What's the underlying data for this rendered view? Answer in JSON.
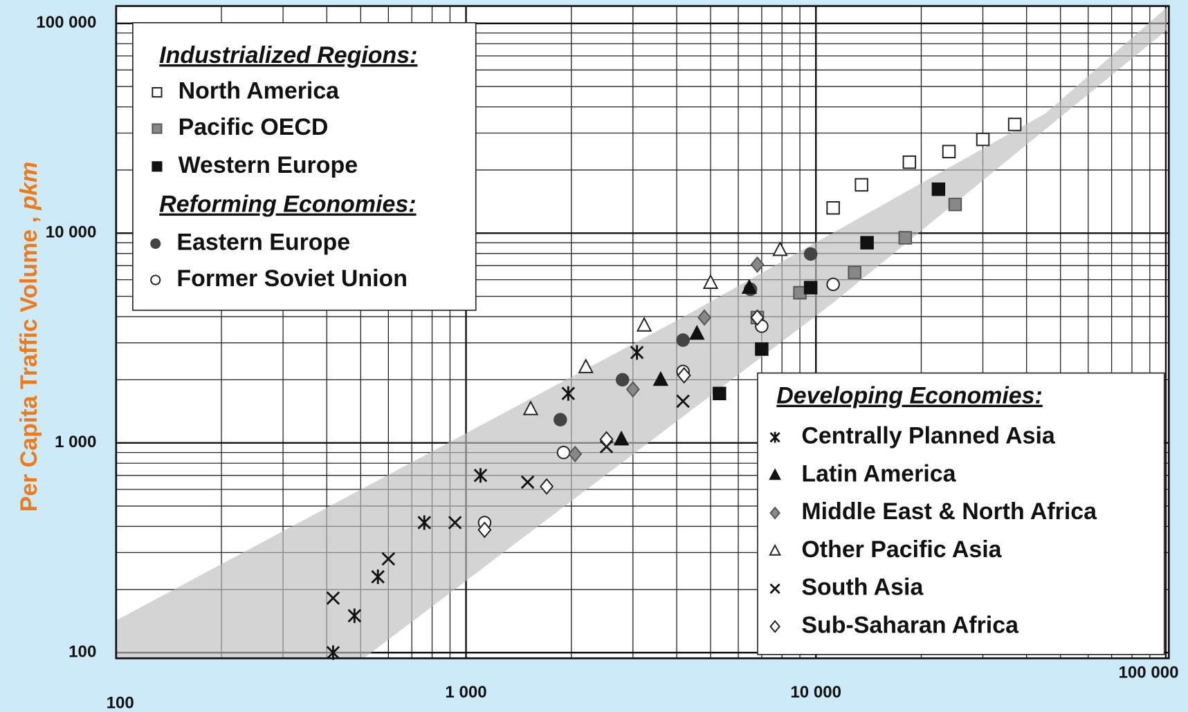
{
  "chart_data": {
    "type": "scatter",
    "y_label": "Per Capita Traffic Volume ,",
    "y_label_unit": "pkm",
    "log_x": true,
    "log_y": true,
    "grid": true,
    "xlim": [
      100,
      102000
    ],
    "ylim": [
      94,
      121000
    ],
    "xticks": [
      100,
      {
        "value": 1000,
        "label": "1 000"
      },
      {
        "value": 10000,
        "label": "10 000"
      },
      {
        "value": 100000,
        "label": "100 000"
      }
    ],
    "yticks": [
      100,
      {
        "value": 1000,
        "label": "1 000"
      },
      {
        "value": 10000,
        "label": "10 000"
      },
      {
        "value": 100000,
        "label": "100 000"
      }
    ],
    "groups": [
      {
        "title": "Industrialized Regions:",
        "series": [
          {
            "name": "North America",
            "marker": "square-open",
            "color": "#222",
            "x": [
              11200,
              13500,
              18500,
              24000,
              30000,
              37000
            ],
            "values": [
              13200,
              17000,
              21800,
              24500,
              28000,
              33000
            ]
          },
          {
            "name": "Pacific OECD",
            "marker": "square-gray",
            "color": "#555",
            "x": [
              6800,
              9000,
              12900,
              18000,
              25000
            ],
            "values": [
              3960,
              5200,
              6500,
              9500,
              13700
            ]
          },
          {
            "name": "Western Europe",
            "marker": "square",
            "color": "#111",
            "x": [
              5300,
              7000,
              9660,
              14000,
              22400
            ],
            "values": [
              1720,
              2800,
              5500,
              9000,
              16200
            ]
          }
        ]
      },
      {
        "title": "Reforming Economies:",
        "series": [
          {
            "name": "Eastern Europe",
            "marker": "circle",
            "color": "#444",
            "x": [
              1860,
              2800,
              4170,
              6500,
              9660
            ],
            "values": [
              1290,
              2000,
              3090,
              5400,
              7950
            ]
          },
          {
            "name": "Former Soviet Union",
            "marker": "circle-open",
            "color": "#222",
            "x": [
              1130,
              1900,
              4170,
              7000,
              11200
            ],
            "values": [
              417,
              900,
              2190,
              3600,
              5700
            ]
          }
        ]
      },
      {
        "title": "Developing Economies:",
        "series": [
          {
            "name": "Centrally Planned Asia",
            "marker": "asterisk",
            "color": "#111",
            "x": [
              417,
              480,
              560,
              760,
              1100,
              1960,
              3080
            ],
            "values": [
              100,
              150,
              230,
              417,
              700,
              1720,
              2700
            ]
          },
          {
            "name": "Latin America",
            "marker": "triangle",
            "color": "#111",
            "x": [
              2780,
              3600,
              4570,
              6450
            ],
            "values": [
              1040,
              2000,
              3320,
              5500
            ]
          },
          {
            "name": "Middle East & North Africa",
            "marker": "diamond-gray",
            "color": "#555",
            "x": [
              2050,
              3000,
              4800,
              6800
            ],
            "values": [
              885,
              1800,
              3960,
              7080
            ]
          },
          {
            "name": "Other Pacific Asia",
            "marker": "triangle-open",
            "color": "#222",
            "x": [
              1530,
              2200,
              3230,
              5000,
              7900
            ],
            "values": [
              1450,
              2300,
              3630,
              5800,
              8320
            ]
          },
          {
            "name": "South Asia",
            "marker": "cross",
            "color": "#111",
            "x": [
              417,
              600,
              930,
              1500,
              2520,
              4170
            ],
            "values": [
              182,
              280,
              417,
              650,
              960,
              1580
            ]
          },
          {
            "name": "Sub-Saharan Africa",
            "marker": "diamond-open",
            "color": "#222",
            "x": [
              1130,
              1700,
              2520,
              4200,
              6800
            ],
            "values": [
              385,
              620,
              1040,
              2100,
              3960
            ]
          }
        ]
      }
    ]
  }
}
